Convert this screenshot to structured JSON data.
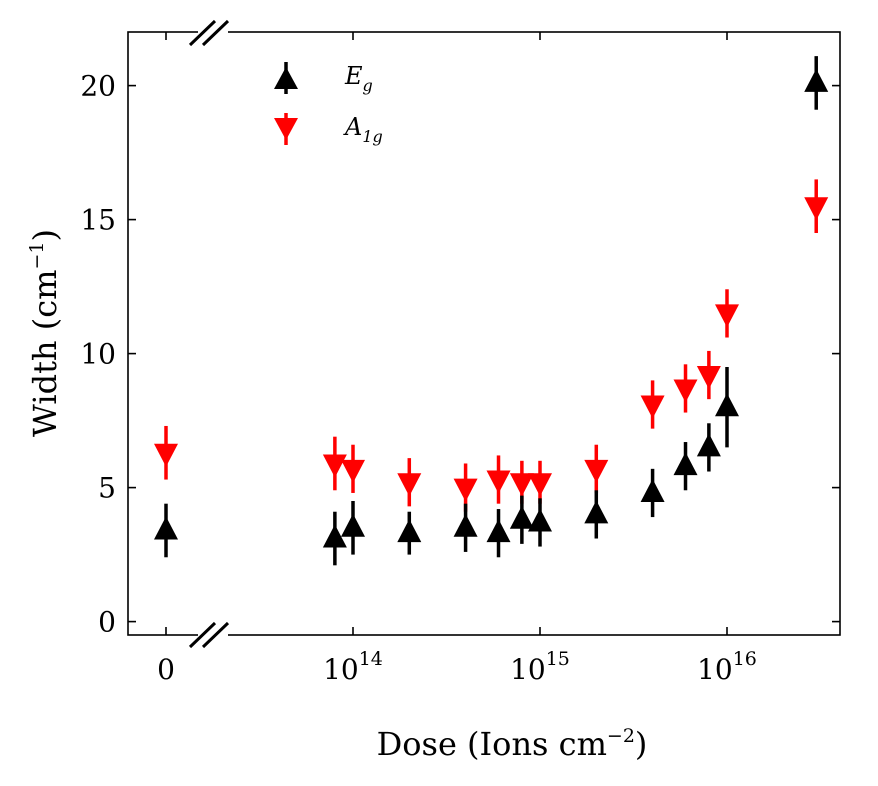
{
  "chart_data": {
    "type": "scatter",
    "xlabel": "Dose (Ions cm",
    "xlabel_sup": "−2",
    "xlabel_close": ")",
    "ylabel": "Width (cm",
    "ylabel_sup": "−1",
    "ylabel_close": ")",
    "ylim": [
      -0.5,
      22
    ],
    "y_ticks": [
      0,
      5,
      10,
      15,
      20
    ],
    "x_axis_break": "between 0 and 10^14 (log scale after the break)",
    "x_ticks": [
      {
        "base": "0",
        "sup": ""
      },
      {
        "base": "10",
        "sup": "14"
      },
      {
        "base": "10",
        "sup": "15"
      },
      {
        "base": "10",
        "sup": "16"
      }
    ],
    "legend": {
      "position": "top-left"
    },
    "series": [
      {
        "name": "E",
        "subscript": "g",
        "color": "#000000",
        "marker": "triangle-up",
        "points": [
          {
            "x": 0,
            "y": 3.4,
            "err": 1.0
          },
          {
            "x": 80000000000000.0,
            "y": 3.1,
            "err": 1.0
          },
          {
            "x": 100000000000000.0,
            "y": 3.5,
            "err": 1.0
          },
          {
            "x": 200000000000000.0,
            "y": 3.3,
            "err": 0.8
          },
          {
            "x": 400000000000000.0,
            "y": 3.5,
            "err": 0.9
          },
          {
            "x": 600000000000000.0,
            "y": 3.3,
            "err": 0.9
          },
          {
            "x": 800000000000000.0,
            "y": 3.8,
            "err": 0.9
          },
          {
            "x": 1000000000000000.0,
            "y": 3.7,
            "err": 0.9
          },
          {
            "x": 2000000000000000.0,
            "y": 4.0,
            "err": 0.9
          },
          {
            "x": 4000000000000000.0,
            "y": 4.8,
            "err": 0.9
          },
          {
            "x": 6000000000000000.0,
            "y": 5.8,
            "err": 0.9
          },
          {
            "x": 8000000000000000.0,
            "y": 6.5,
            "err": 0.9
          },
          {
            "x": 1e+16,
            "y": 8.0,
            "err": 1.5
          },
          {
            "x": 3e+16,
            "y": 20.1,
            "err": 1.0
          }
        ]
      },
      {
        "name": "A",
        "subscript": "1g",
        "color": "#ff0000",
        "marker": "triangle-down",
        "points": [
          {
            "x": 0,
            "y": 6.3,
            "err": 1.0
          },
          {
            "x": 80000000000000.0,
            "y": 5.9,
            "err": 1.0
          },
          {
            "x": 100000000000000.0,
            "y": 5.7,
            "err": 0.9
          },
          {
            "x": 200000000000000.0,
            "y": 5.2,
            "err": 0.9
          },
          {
            "x": 400000000000000.0,
            "y": 5.0,
            "err": 0.9
          },
          {
            "x": 600000000000000.0,
            "y": 5.3,
            "err": 0.9
          },
          {
            "x": 800000000000000.0,
            "y": 5.2,
            "err": 0.8
          },
          {
            "x": 1000000000000000.0,
            "y": 5.2,
            "err": 0.8
          },
          {
            "x": 2000000000000000.0,
            "y": 5.7,
            "err": 0.9
          },
          {
            "x": 4000000000000000.0,
            "y": 8.1,
            "err": 0.9
          },
          {
            "x": 6000000000000000.0,
            "y": 8.7,
            "err": 0.9
          },
          {
            "x": 8000000000000000.0,
            "y": 9.2,
            "err": 0.9
          },
          {
            "x": 1e+16,
            "y": 11.5,
            "err": 0.9
          },
          {
            "x": 3e+16,
            "y": 15.5,
            "err": 1.0
          }
        ]
      }
    ]
  }
}
